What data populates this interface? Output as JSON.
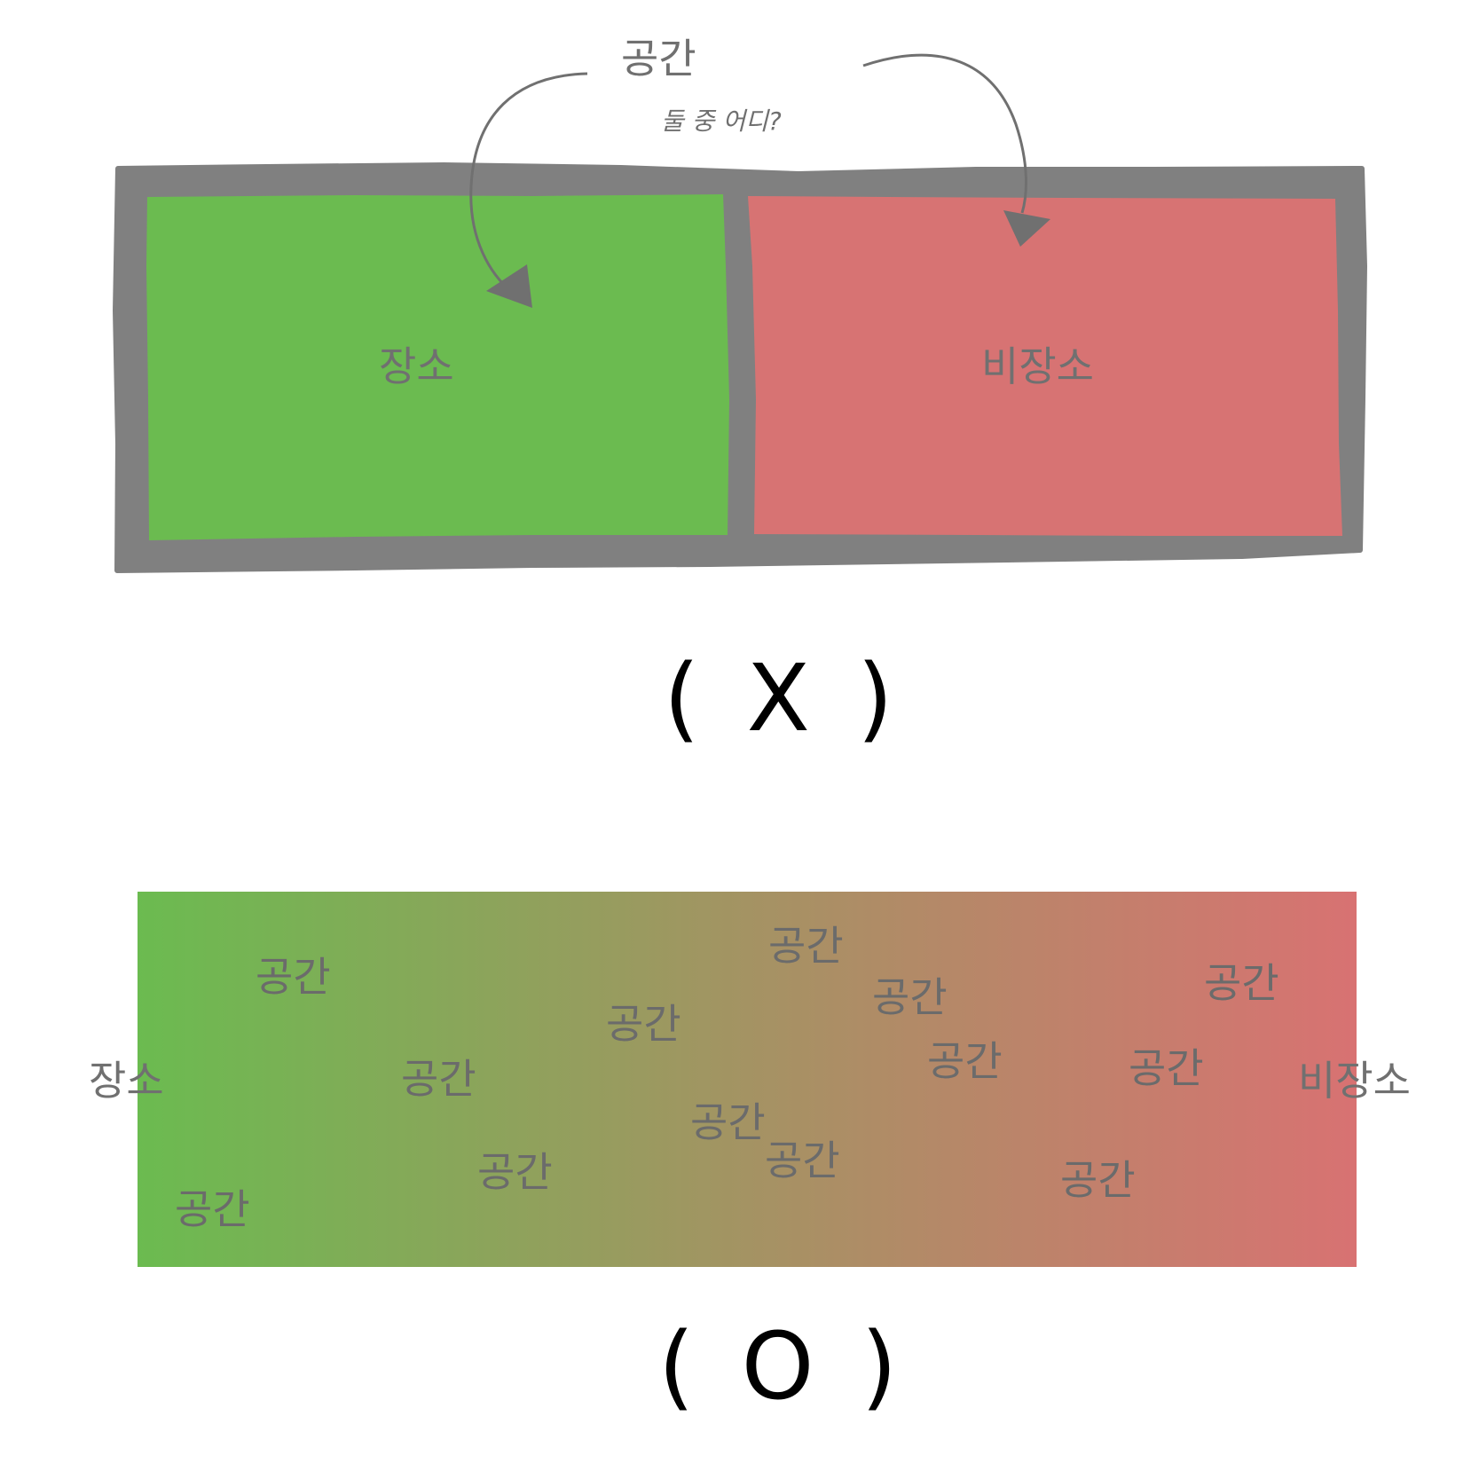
{
  "top_diagram": {
    "title": "공간",
    "subtitle": "둘 중 어디?",
    "left_box_label": "장소",
    "right_box_label": "비장소",
    "verdict": "( X )",
    "colors": {
      "left_fill": "#6bbb50",
      "right_fill": "#d77373",
      "frame": "#808080",
      "arrow": "#707070"
    }
  },
  "bottom_diagram": {
    "left_end_label": "장소",
    "right_end_label": "비장소",
    "scattered_label": "공간",
    "scattered_count": 14,
    "verdict": "( O )",
    "colors": {
      "gradient_start": "#6bbb50",
      "gradient_end": "#d87272"
    }
  }
}
